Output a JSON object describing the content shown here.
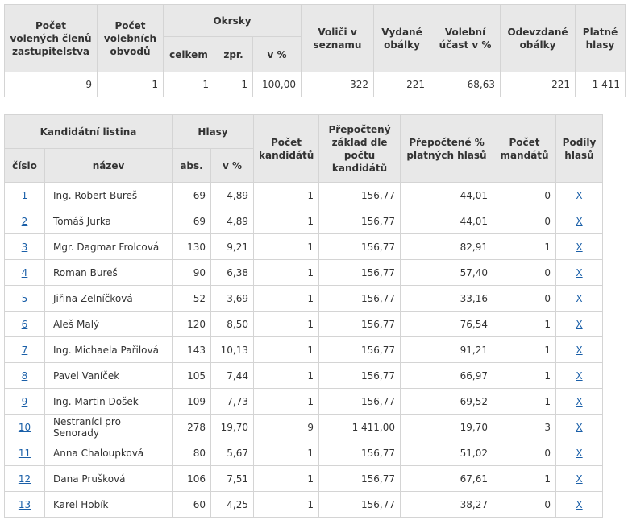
{
  "summary": {
    "headers": {
      "members": "Počet volených členů zastupitelstva",
      "districts": "Počet volebních obvodů",
      "precincts": "Okrsky",
      "precincts_total": "celkem",
      "precincts_processed": "zpr.",
      "precincts_percent": "v %",
      "voters": "Voliči v seznamu",
      "issued": "Vydané obálky",
      "turnout": "Volební účast v %",
      "returned": "Odevzdané obálky",
      "valid": "Platné hlasy"
    },
    "values": {
      "members": "9",
      "districts": "1",
      "precincts_total": "1",
      "precincts_processed": "1",
      "precincts_percent": "100,00",
      "voters": "322",
      "issued": "221",
      "turnout": "68,63",
      "returned": "221",
      "valid": "1 411"
    }
  },
  "candidates": {
    "headers": {
      "list": "Kandidátní listina",
      "number": "číslo",
      "name": "název",
      "votes": "Hlasy",
      "votes_abs": "abs.",
      "votes_percent": "v %",
      "candidate_count": "Počet kandidátů",
      "recalc_base": "Přepočtený základ dle počtu kandidátů",
      "recalc_percent": "Přepočtené % platných hlasů",
      "mandates": "Počet mandátů",
      "vote_shares": "Podíly hlasů"
    },
    "rows": [
      {
        "number": "1",
        "name": "Ing. Robert Bureš",
        "abs": "69",
        "pct": "4,89",
        "count": "1",
        "base": "156,77",
        "rpct": "44,01",
        "mandates": "0",
        "link": "X"
      },
      {
        "number": "2",
        "name": "Tomáš Jurka",
        "abs": "69",
        "pct": "4,89",
        "count": "1",
        "base": "156,77",
        "rpct": "44,01",
        "mandates": "0",
        "link": "X"
      },
      {
        "number": "3",
        "name": "Mgr. Dagmar Frolcová",
        "abs": "130",
        "pct": "9,21",
        "count": "1",
        "base": "156,77",
        "rpct": "82,91",
        "mandates": "1",
        "link": "X"
      },
      {
        "number": "4",
        "name": "Roman Bureš",
        "abs": "90",
        "pct": "6,38",
        "count": "1",
        "base": "156,77",
        "rpct": "57,40",
        "mandates": "0",
        "link": "X"
      },
      {
        "number": "5",
        "name": "Jiřina Zelníčková",
        "abs": "52",
        "pct": "3,69",
        "count": "1",
        "base": "156,77",
        "rpct": "33,16",
        "mandates": "0",
        "link": "X"
      },
      {
        "number": "6",
        "name": "Aleš Malý",
        "abs": "120",
        "pct": "8,50",
        "count": "1",
        "base": "156,77",
        "rpct": "76,54",
        "mandates": "1",
        "link": "X"
      },
      {
        "number": "7",
        "name": "Ing. Michaela Pařilová",
        "abs": "143",
        "pct": "10,13",
        "count": "1",
        "base": "156,77",
        "rpct": "91,21",
        "mandates": "1",
        "link": "X"
      },
      {
        "number": "8",
        "name": "Pavel Vaníček",
        "abs": "105",
        "pct": "7,44",
        "count": "1",
        "base": "156,77",
        "rpct": "66,97",
        "mandates": "1",
        "link": "X"
      },
      {
        "number": "9",
        "name": "Ing. Martin Došek",
        "abs": "109",
        "pct": "7,73",
        "count": "1",
        "base": "156,77",
        "rpct": "69,52",
        "mandates": "1",
        "link": "X"
      },
      {
        "number": "10",
        "name": "Nestraníci pro Senorady",
        "abs": "278",
        "pct": "19,70",
        "count": "9",
        "base": "1 411,00",
        "rpct": "19,70",
        "mandates": "3",
        "link": "X"
      },
      {
        "number": "11",
        "name": "Anna Chaloupková",
        "abs": "80",
        "pct": "5,67",
        "count": "1",
        "base": "156,77",
        "rpct": "51,02",
        "mandates": "0",
        "link": "X"
      },
      {
        "number": "12",
        "name": "Dana Prušková",
        "abs": "106",
        "pct": "7,51",
        "count": "1",
        "base": "156,77",
        "rpct": "67,61",
        "mandates": "1",
        "link": "X"
      },
      {
        "number": "13",
        "name": "Karel Hobík",
        "abs": "60",
        "pct": "4,25",
        "count": "1",
        "base": "156,77",
        "rpct": "38,27",
        "mandates": "0",
        "link": "X"
      }
    ]
  }
}
